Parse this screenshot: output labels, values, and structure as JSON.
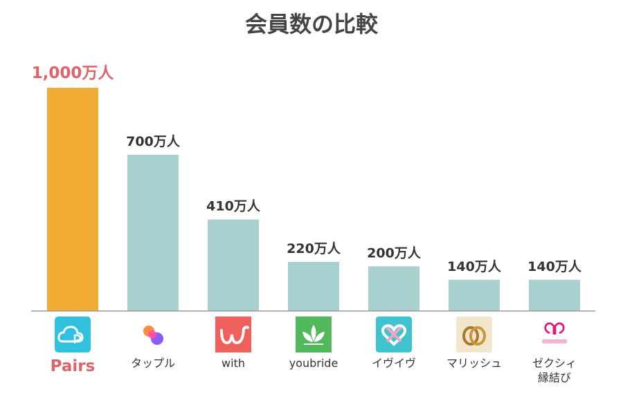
{
  "chart_data": {
    "type": "bar",
    "title": "会員数の比較",
    "unit": "万人",
    "categories": [
      "Pairs",
      "タップル",
      "with",
      "youbride",
      "イヴイヴ",
      "マリッシュ",
      "ゼクシィ縁結び"
    ],
    "category_lines": [
      [
        "Pairs"
      ],
      [
        "タップル"
      ],
      [
        "with"
      ],
      [
        "youbride"
      ],
      [
        "イヴイヴ"
      ],
      [
        "マリッシュ"
      ],
      [
        "ゼクシィ",
        "縁結び"
      ]
    ],
    "values": [
      1000,
      700,
      410,
      220,
      200,
      140,
      140
    ],
    "data_labels": [
      "1,000万人",
      "700万人",
      "410万人",
      "220万人",
      "200万人",
      "140万人",
      "140万人"
    ],
    "icons": [
      "pairs-app-icon",
      "tapple-app-icon",
      "with-app-icon",
      "youbride-app-icon",
      "eveeve-app-icon",
      "marrish-app-icon",
      "zexy-enmusubi-app-icon"
    ],
    "highlight_index": 0,
    "ylim": [
      0,
      1000
    ],
    "grid": false,
    "legend": "none"
  },
  "colors": {
    "highlight_bar": "#f2ad34",
    "bar": "#a8d1cf",
    "highlight_text": "#e0636a",
    "text": "#333333",
    "title": "#444444",
    "axis": "#999999"
  }
}
